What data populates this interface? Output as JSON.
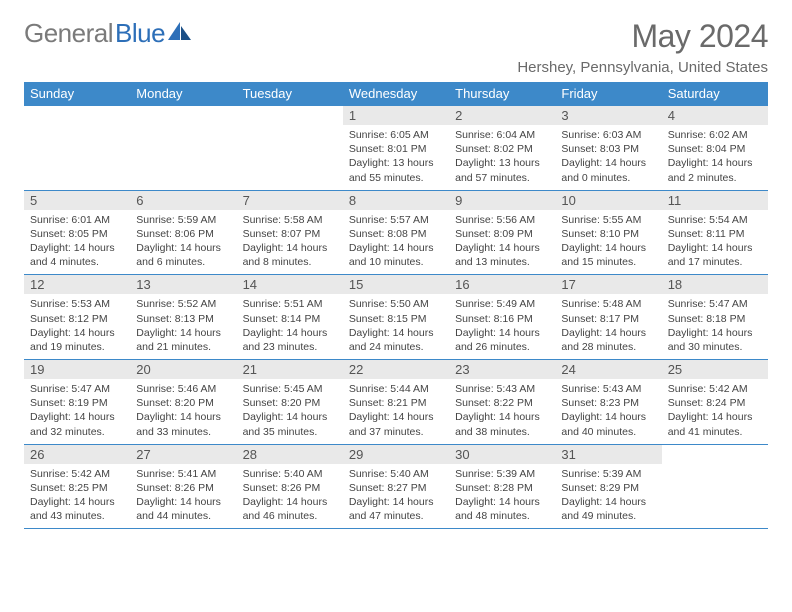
{
  "brand": {
    "part1": "General",
    "part2": "Blue"
  },
  "header": {
    "title": "May 2024",
    "location": "Hershey, Pennsylvania, United States"
  },
  "colors": {
    "header_bg": "#3d89c9",
    "header_fg": "#ffffff",
    "daynum_bg": "#e9e9e9",
    "rule": "#3d89c9",
    "brand_gray": "#7a7a7a",
    "brand_blue": "#2d6fb8"
  },
  "weekdays": [
    "Sunday",
    "Monday",
    "Tuesday",
    "Wednesday",
    "Thursday",
    "Friday",
    "Saturday"
  ],
  "weeks": [
    [
      {
        "n": "",
        "sunrise": "",
        "sunset": "",
        "daylight": ""
      },
      {
        "n": "",
        "sunrise": "",
        "sunset": "",
        "daylight": ""
      },
      {
        "n": "",
        "sunrise": "",
        "sunset": "",
        "daylight": ""
      },
      {
        "n": "1",
        "sunrise": "Sunrise: 6:05 AM",
        "sunset": "Sunset: 8:01 PM",
        "daylight": "Daylight: 13 hours and 55 minutes."
      },
      {
        "n": "2",
        "sunrise": "Sunrise: 6:04 AM",
        "sunset": "Sunset: 8:02 PM",
        "daylight": "Daylight: 13 hours and 57 minutes."
      },
      {
        "n": "3",
        "sunrise": "Sunrise: 6:03 AM",
        "sunset": "Sunset: 8:03 PM",
        "daylight": "Daylight: 14 hours and 0 minutes."
      },
      {
        "n": "4",
        "sunrise": "Sunrise: 6:02 AM",
        "sunset": "Sunset: 8:04 PM",
        "daylight": "Daylight: 14 hours and 2 minutes."
      }
    ],
    [
      {
        "n": "5",
        "sunrise": "Sunrise: 6:01 AM",
        "sunset": "Sunset: 8:05 PM",
        "daylight": "Daylight: 14 hours and 4 minutes."
      },
      {
        "n": "6",
        "sunrise": "Sunrise: 5:59 AM",
        "sunset": "Sunset: 8:06 PM",
        "daylight": "Daylight: 14 hours and 6 minutes."
      },
      {
        "n": "7",
        "sunrise": "Sunrise: 5:58 AM",
        "sunset": "Sunset: 8:07 PM",
        "daylight": "Daylight: 14 hours and 8 minutes."
      },
      {
        "n": "8",
        "sunrise": "Sunrise: 5:57 AM",
        "sunset": "Sunset: 8:08 PM",
        "daylight": "Daylight: 14 hours and 10 minutes."
      },
      {
        "n": "9",
        "sunrise": "Sunrise: 5:56 AM",
        "sunset": "Sunset: 8:09 PM",
        "daylight": "Daylight: 14 hours and 13 minutes."
      },
      {
        "n": "10",
        "sunrise": "Sunrise: 5:55 AM",
        "sunset": "Sunset: 8:10 PM",
        "daylight": "Daylight: 14 hours and 15 minutes."
      },
      {
        "n": "11",
        "sunrise": "Sunrise: 5:54 AM",
        "sunset": "Sunset: 8:11 PM",
        "daylight": "Daylight: 14 hours and 17 minutes."
      }
    ],
    [
      {
        "n": "12",
        "sunrise": "Sunrise: 5:53 AM",
        "sunset": "Sunset: 8:12 PM",
        "daylight": "Daylight: 14 hours and 19 minutes."
      },
      {
        "n": "13",
        "sunrise": "Sunrise: 5:52 AM",
        "sunset": "Sunset: 8:13 PM",
        "daylight": "Daylight: 14 hours and 21 minutes."
      },
      {
        "n": "14",
        "sunrise": "Sunrise: 5:51 AM",
        "sunset": "Sunset: 8:14 PM",
        "daylight": "Daylight: 14 hours and 23 minutes."
      },
      {
        "n": "15",
        "sunrise": "Sunrise: 5:50 AM",
        "sunset": "Sunset: 8:15 PM",
        "daylight": "Daylight: 14 hours and 24 minutes."
      },
      {
        "n": "16",
        "sunrise": "Sunrise: 5:49 AM",
        "sunset": "Sunset: 8:16 PM",
        "daylight": "Daylight: 14 hours and 26 minutes."
      },
      {
        "n": "17",
        "sunrise": "Sunrise: 5:48 AM",
        "sunset": "Sunset: 8:17 PM",
        "daylight": "Daylight: 14 hours and 28 minutes."
      },
      {
        "n": "18",
        "sunrise": "Sunrise: 5:47 AM",
        "sunset": "Sunset: 8:18 PM",
        "daylight": "Daylight: 14 hours and 30 minutes."
      }
    ],
    [
      {
        "n": "19",
        "sunrise": "Sunrise: 5:47 AM",
        "sunset": "Sunset: 8:19 PM",
        "daylight": "Daylight: 14 hours and 32 minutes."
      },
      {
        "n": "20",
        "sunrise": "Sunrise: 5:46 AM",
        "sunset": "Sunset: 8:20 PM",
        "daylight": "Daylight: 14 hours and 33 minutes."
      },
      {
        "n": "21",
        "sunrise": "Sunrise: 5:45 AM",
        "sunset": "Sunset: 8:20 PM",
        "daylight": "Daylight: 14 hours and 35 minutes."
      },
      {
        "n": "22",
        "sunrise": "Sunrise: 5:44 AM",
        "sunset": "Sunset: 8:21 PM",
        "daylight": "Daylight: 14 hours and 37 minutes."
      },
      {
        "n": "23",
        "sunrise": "Sunrise: 5:43 AM",
        "sunset": "Sunset: 8:22 PM",
        "daylight": "Daylight: 14 hours and 38 minutes."
      },
      {
        "n": "24",
        "sunrise": "Sunrise: 5:43 AM",
        "sunset": "Sunset: 8:23 PM",
        "daylight": "Daylight: 14 hours and 40 minutes."
      },
      {
        "n": "25",
        "sunrise": "Sunrise: 5:42 AM",
        "sunset": "Sunset: 8:24 PM",
        "daylight": "Daylight: 14 hours and 41 minutes."
      }
    ],
    [
      {
        "n": "26",
        "sunrise": "Sunrise: 5:42 AM",
        "sunset": "Sunset: 8:25 PM",
        "daylight": "Daylight: 14 hours and 43 minutes."
      },
      {
        "n": "27",
        "sunrise": "Sunrise: 5:41 AM",
        "sunset": "Sunset: 8:26 PM",
        "daylight": "Daylight: 14 hours and 44 minutes."
      },
      {
        "n": "28",
        "sunrise": "Sunrise: 5:40 AM",
        "sunset": "Sunset: 8:26 PM",
        "daylight": "Daylight: 14 hours and 46 minutes."
      },
      {
        "n": "29",
        "sunrise": "Sunrise: 5:40 AM",
        "sunset": "Sunset: 8:27 PM",
        "daylight": "Daylight: 14 hours and 47 minutes."
      },
      {
        "n": "30",
        "sunrise": "Sunrise: 5:39 AM",
        "sunset": "Sunset: 8:28 PM",
        "daylight": "Daylight: 14 hours and 48 minutes."
      },
      {
        "n": "31",
        "sunrise": "Sunrise: 5:39 AM",
        "sunset": "Sunset: 8:29 PM",
        "daylight": "Daylight: 14 hours and 49 minutes."
      },
      {
        "n": "",
        "sunrise": "",
        "sunset": "",
        "daylight": ""
      }
    ]
  ]
}
